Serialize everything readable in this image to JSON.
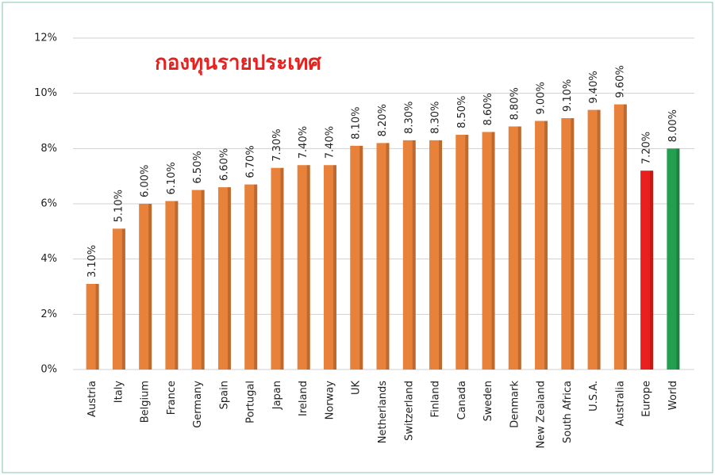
{
  "chart_data": {
    "type": "bar",
    "title": "กองทุนรายประเทศ",
    "categories": [
      "Austria",
      "Italy",
      "Belgium",
      "France",
      "Germany",
      "Spain",
      "Portugal",
      "Japan",
      "Ireland",
      "Norway",
      "UK",
      "Netherlands",
      "Switzerland",
      "Finland",
      "Canada",
      "Sweden",
      "Denmark",
      "New Zealand",
      "South Africa",
      "U.S.A.",
      "Australia",
      "Europe",
      "World"
    ],
    "values": [
      3.1,
      5.1,
      6.0,
      6.1,
      6.5,
      6.6,
      6.7,
      7.3,
      7.4,
      7.4,
      8.1,
      8.2,
      8.3,
      8.3,
      8.5,
      8.6,
      8.8,
      9.0,
      9.1,
      9.4,
      9.6,
      7.2,
      8.0
    ],
    "value_labels": [
      "3.10%",
      "5.10%",
      "6.00%",
      "6.10%",
      "6.50%",
      "6.60%",
      "6.70%",
      "7.30%",
      "7.40%",
      "7.40%",
      "8.10%",
      "8.20%",
      "8.30%",
      "8.30%",
      "8.50%",
      "8.60%",
      "8.80%",
      "9.00%",
      "9.10%",
      "9.40%",
      "9.60%",
      "7.20%",
      "8.00%"
    ],
    "colors": [
      "#e8823a",
      "#e8823a",
      "#e8823a",
      "#e8823a",
      "#e8823a",
      "#e8823a",
      "#e8823a",
      "#e8823a",
      "#e8823a",
      "#e8823a",
      "#e8823a",
      "#e8823a",
      "#e8823a",
      "#e8823a",
      "#e8823a",
      "#e8823a",
      "#e8823a",
      "#e8823a",
      "#e8823a",
      "#e8823a",
      "#e8823a",
      "#e8201e",
      "#22a050"
    ],
    "ylim": [
      0,
      12
    ],
    "yticks": [
      {
        "value": 0,
        "label": "0%"
      },
      {
        "value": 2,
        "label": "2%"
      },
      {
        "value": 4,
        "label": "4%"
      },
      {
        "value": 6,
        "label": "6%"
      },
      {
        "value": 8,
        "label": "8%"
      },
      {
        "value": 10,
        "label": "10%"
      },
      {
        "value": 12,
        "label": "12%"
      }
    ],
    "grid": true
  }
}
